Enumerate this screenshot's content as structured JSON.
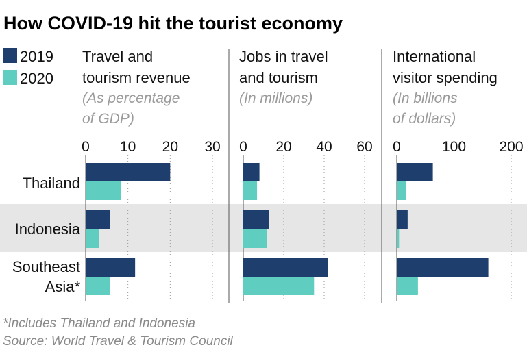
{
  "title": "How COVID-19 hit the tourist economy",
  "legend": [
    {
      "label": "2019",
      "color": "#1e3f6e"
    },
    {
      "label": "2020",
      "color": "#5fcdc0"
    }
  ],
  "footnotes": [
    "*Includes Thailand and Indonesia",
    "Source: World Travel & Tourism Council"
  ],
  "colors": {
    "band": "#e6e6e6",
    "grid": "#9a9a9a",
    "divider": "#555555"
  },
  "chart_data": [
    {
      "type": "bar",
      "title_lines": [
        "Travel and",
        "tourism revenue"
      ],
      "subtitle_lines": [
        "(As percentage",
        "of GDP)"
      ],
      "categories": [
        "Thailand",
        "Indonesia",
        "Southeast Asia*"
      ],
      "series": [
        {
          "name": "2019",
          "values": [
            20,
            5.7,
            11.7
          ]
        },
        {
          "name": "2020",
          "values": [
            8.4,
            3.2,
            5.8
          ]
        }
      ],
      "xlim": [
        0,
        30
      ],
      "ticks": [
        0,
        10,
        20,
        30
      ]
    },
    {
      "type": "bar",
      "title_lines": [
        "Jobs in travel",
        "and tourism"
      ],
      "subtitle_lines": [
        "(In millions)"
      ],
      "categories": [
        "Thailand",
        "Indonesia",
        "Southeast Asia*"
      ],
      "series": [
        {
          "name": "2019",
          "values": [
            8,
            12.6,
            42
          ]
        },
        {
          "name": "2020",
          "values": [
            6.8,
            11.6,
            35
          ]
        }
      ],
      "xlim": [
        0,
        60
      ],
      "ticks": [
        0,
        20,
        40,
        60
      ]
    },
    {
      "type": "bar",
      "title_lines": [
        "International",
        "visitor spending"
      ],
      "subtitle_lines": [
        "(In billions",
        "of dollars)"
      ],
      "categories": [
        "Thailand",
        "Indonesia",
        "Southeast Asia*"
      ],
      "series": [
        {
          "name": "2019",
          "values": [
            63,
            19,
            160
          ]
        },
        {
          "name": "2020",
          "values": [
            16,
            4,
            37
          ]
        }
      ],
      "xlim": [
        0,
        200
      ],
      "ticks": [
        0,
        100,
        200
      ]
    }
  ],
  "category_labels": [
    [
      "Thailand"
    ],
    [
      "Indonesia"
    ],
    [
      "Southeast",
      "Asia*"
    ]
  ]
}
